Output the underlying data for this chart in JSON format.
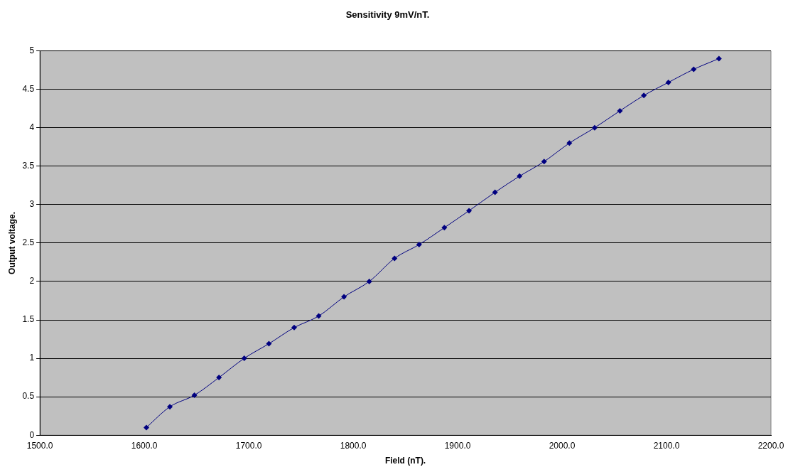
{
  "chart_data": {
    "type": "line",
    "title": "Sensitivity 9mV/nT.",
    "xlabel": "Field (nT).",
    "ylabel": "Output voltage.",
    "x": [
      1602,
      1624.5,
      1648.0,
      1671.5,
      1695.7,
      1719.3,
      1743.5,
      1767.0,
      1791.2,
      1815.4,
      1839.6,
      1863.1,
      1887.3,
      1910.9,
      1935.8,
      1959.3,
      1982.8,
      2007.0,
      2031.2,
      2055.4,
      2078.3,
      2101.8,
      2126.0,
      2150.2
    ],
    "series": [
      {
        "color": "#000080",
        "values": [
          0.1,
          0.37,
          0.52,
          0.75,
          1.0,
          1.19,
          1.4,
          1.55,
          1.8,
          2.0,
          2.3,
          2.48,
          2.7,
          2.92,
          3.16,
          3.37,
          3.56,
          3.8,
          4.0,
          4.22,
          4.42,
          4.59,
          4.76,
          4.9
        ]
      }
    ],
    "xlim": [
      1500,
      2200
    ],
    "xticks": [
      {
        "value": 1500,
        "label": "1500.0"
      },
      {
        "value": 1600,
        "label": "1600.0"
      },
      {
        "value": 1700,
        "label": "1700.0"
      },
      {
        "value": 1800,
        "label": "1800.0"
      },
      {
        "value": 1900,
        "label": "1900.0"
      },
      {
        "value": 2000,
        "label": "2000.0"
      },
      {
        "value": 2100,
        "label": "2100.0"
      },
      {
        "value": 2200,
        "label": "2200.0"
      }
    ],
    "ylim": [
      0,
      5
    ],
    "yticks": [
      0,
      0.5,
      1,
      1.5,
      2,
      2.5,
      3,
      3.5,
      4,
      4.5,
      5
    ],
    "grid": "y",
    "legend": false,
    "marker": "diamond",
    "line_style": "solid"
  }
}
